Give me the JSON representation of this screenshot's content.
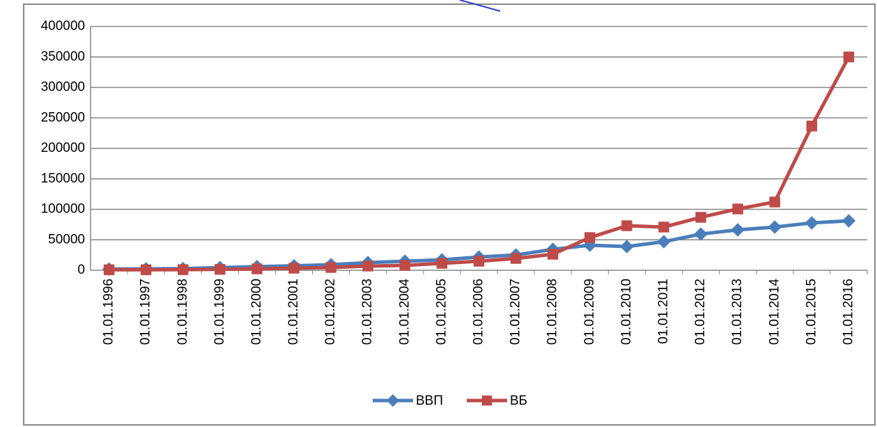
{
  "chart_data": {
    "type": "line",
    "categories": [
      "01.01.1996",
      "01.01.1997",
      "01.01.1998",
      "01.01.1999",
      "01.01.2000",
      "01.01.2001",
      "01.01.2002",
      "01.01.2003",
      "01.01.2004",
      "01.01.2005",
      "01.01.2006",
      "01.01.2007",
      "01.01.2008",
      "01.01.2009",
      "01.01.2010",
      "01.01.2011",
      "01.01.2012",
      "01.01.2013",
      "01.01.2014",
      "01.01.2015",
      "01.01.2016"
    ],
    "series": [
      {
        "name": "ВВП",
        "color": "#4a7ebb",
        "marker": "diamond",
        "values": [
          2000,
          2300,
          2700,
          4500,
          6000,
          7300,
          9100,
          12600,
          14900,
          17100,
          21700,
          25100,
          34300,
          41100,
          38900,
          46900,
          59400,
          66300,
          70900,
          77700,
          81100
        ]
      },
      {
        "name": "ВБ",
        "color": "#be4b48",
        "marker": "square",
        "values": [
          800,
          900,
          1000,
          1500,
          2300,
          3400,
          4600,
          6900,
          8000,
          11400,
          14900,
          19400,
          26300,
          53700,
          73100,
          70900,
          86900,
          100600,
          112000,
          236600,
          350000
        ]
      }
    ],
    "ylim": [
      0,
      400000
    ],
    "yticks": [
      0,
      50000,
      100000,
      150000,
      200000,
      250000,
      300000,
      350000,
      400000
    ],
    "grid": true,
    "legend": "bottom"
  }
}
